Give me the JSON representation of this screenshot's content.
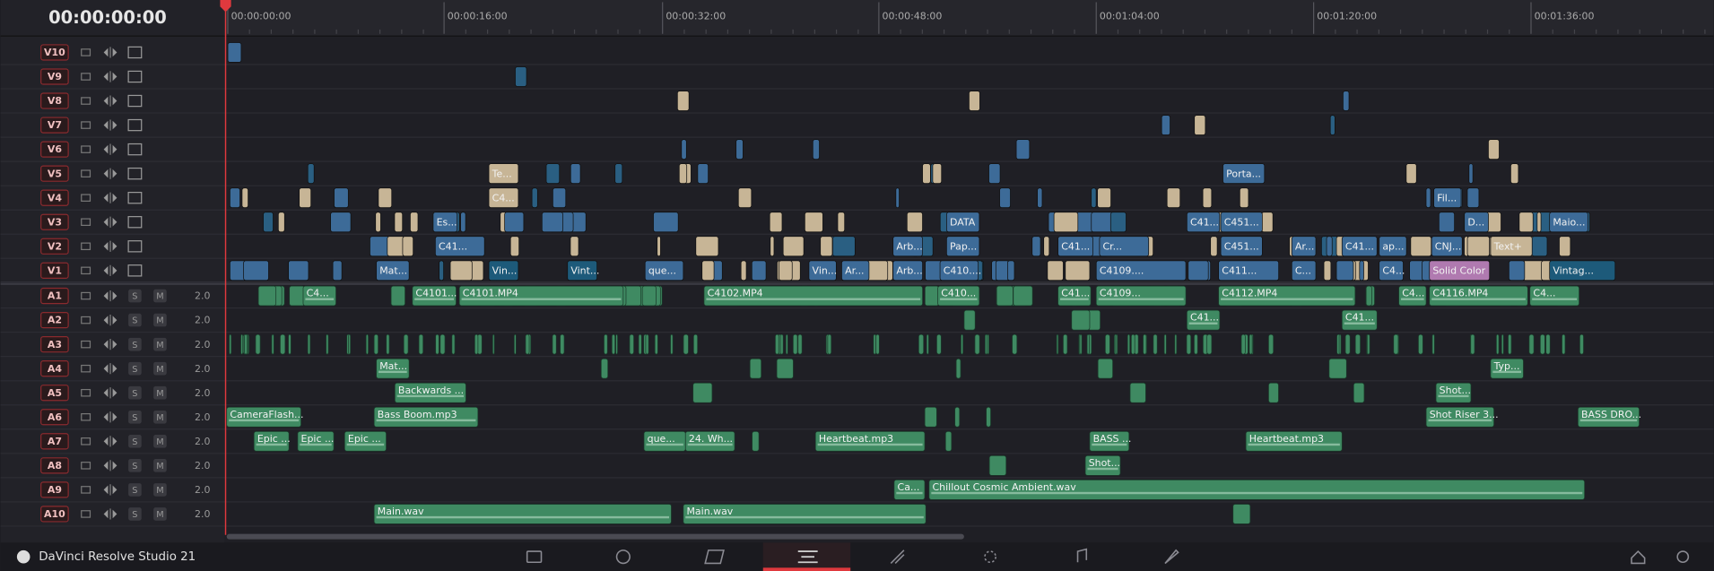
{
  "timecode": "00:00:00:00",
  "ruler": [
    "00:00:00:00",
    "00:00:16:00",
    "00:00:32:00",
    "00:00:48:00",
    "00:01:04:00",
    "00:01:20:00",
    "00:01:36:00"
  ],
  "video_tracks": [
    {
      "name": "V10",
      "clips": []
    },
    {
      "name": "V9",
      "clips": []
    },
    {
      "name": "V8",
      "clips": []
    },
    {
      "name": "V7",
      "clips": []
    },
    {
      "name": "V6",
      "clips": []
    },
    {
      "name": "V5",
      "clips": [
        "Te...",
        "Porta..."
      ]
    },
    {
      "name": "V4",
      "clips": [
        "C4...",
        "Fil..."
      ]
    },
    {
      "name": "V3",
      "clips": [
        "Es...",
        "DATA",
        "C41...",
        "C451...",
        "D...",
        "Maio..."
      ]
    },
    {
      "name": "V2",
      "clips": [
        "C41...",
        "Arb...",
        "Pap...",
        "C41...",
        "Cr...",
        "C451...",
        "Ar...",
        "C41...",
        "ap...",
        "CNJ...",
        "Text+"
      ]
    },
    {
      "name": "V1",
      "clips": [
        "Mat...",
        "Vin...",
        "Vint...",
        "que...",
        "Vin...",
        "Ar...",
        "Arb...",
        "C410....",
        "C4109....",
        "C411...",
        "C...",
        "C4...",
        "Solid Color",
        "Vintag..."
      ]
    }
  ],
  "audio_tracks": [
    {
      "name": "A1",
      "solo": "S",
      "mute": "M",
      "volume": "2.0",
      "clips": [
        "C4...",
        "C4101...",
        "C4101.MP4",
        "C4102.MP4",
        "C410...",
        "C41...",
        "C4109...",
        "C4112.MP4",
        "C4...",
        "C4116.MP4",
        "C4..."
      ]
    },
    {
      "name": "A2",
      "solo": "S",
      "mute": "M",
      "volume": "2.0",
      "clips": [
        "C41...",
        "C41..."
      ]
    },
    {
      "name": "A3",
      "solo": "S",
      "mute": "M",
      "volume": "2.0",
      "clips": []
    },
    {
      "name": "A4",
      "solo": "S",
      "mute": "M",
      "volume": "2.0",
      "clips": [
        "Mat...",
        "Typ..."
      ]
    },
    {
      "name": "A5",
      "solo": "S",
      "mute": "M",
      "volume": "2.0",
      "clips": [
        "Backwards ...",
        "Shot..."
      ]
    },
    {
      "name": "A6",
      "solo": "S",
      "mute": "M",
      "volume": "2.0",
      "clips": [
        "CameraFlash...",
        "Bass Boom.mp3",
        "Shot Riser 3...",
        "BASS DRO..."
      ]
    },
    {
      "name": "A7",
      "solo": "S",
      "mute": "M",
      "volume": "2.0",
      "clips": [
        "Epic ...",
        "Epic ...",
        "Epic ...",
        "que...",
        "24. Wh...",
        "Heartbeat.mp3",
        "BASS ...",
        "Heartbeat.mp3"
      ]
    },
    {
      "name": "A8",
      "solo": "S",
      "mute": "M",
      "volume": "2.0",
      "clips": [
        "Shot..."
      ]
    },
    {
      "name": "A9",
      "solo": "S",
      "mute": "M",
      "volume": "2.0",
      "clips": [
        "Ca...",
        "Chillout Cosmic Ambient.wav"
      ]
    },
    {
      "name": "A10",
      "solo": "S",
      "mute": "M",
      "volume": "2.0",
      "clips": [
        "Main.wav",
        "Main.wav"
      ]
    }
  ],
  "app_name": "DaVinci Resolve Studio 21"
}
